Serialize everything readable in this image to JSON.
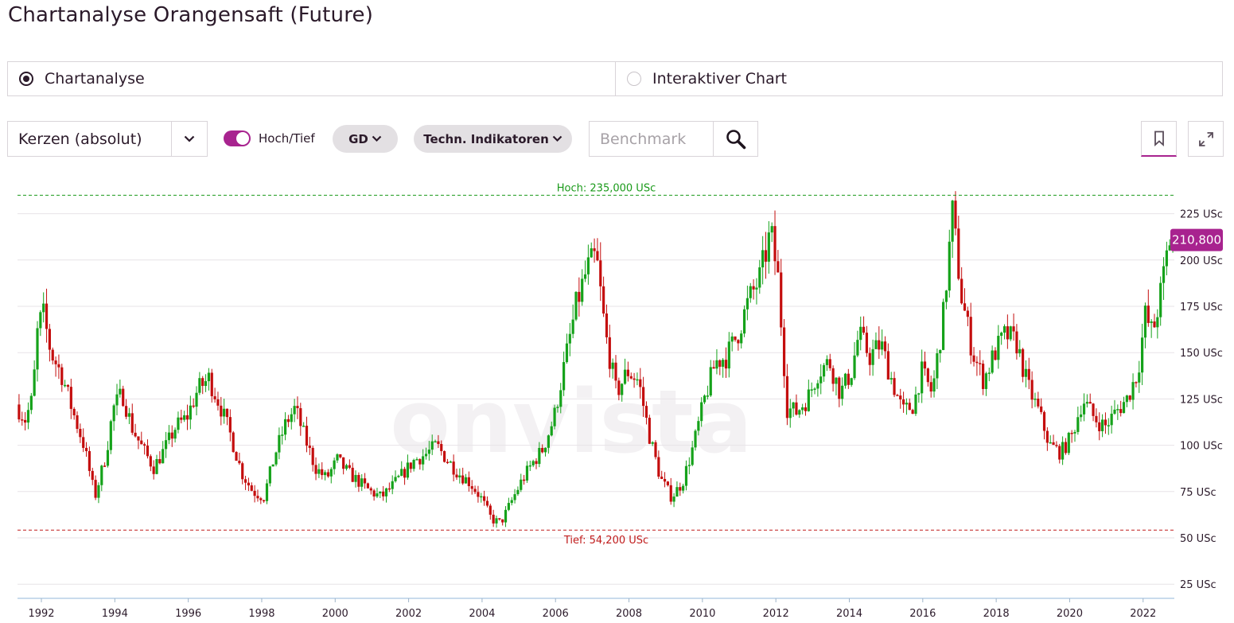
{
  "page": {
    "title": "Chartanalyse Orangensaft (Future)"
  },
  "mode": {
    "options": [
      {
        "label": "Chartanalyse",
        "selected": true
      },
      {
        "label": "Interaktiver Chart",
        "selected": false
      }
    ]
  },
  "toolbar": {
    "chart_type": "Kerzen (absolut)",
    "highlow_toggle_label": "Hoch/Tief",
    "highlow_on": true,
    "gd_label": "GD",
    "indicators_label": "Techn. Indikatoren",
    "benchmark_placeholder": "Benchmark",
    "accent_color": "#a8238f",
    "icons": [
      "chevron-down-icon",
      "search-icon",
      "bookmark-icon",
      "expand-icon"
    ]
  },
  "chart_data": {
    "type": "candlestick",
    "watermark": "onvista",
    "unit": "USc",
    "up_color": "#15a21a",
    "down_color": "#c40d0d",
    "x_range": [
      1991.35,
      2022.85
    ],
    "y_range": [
      20,
      240
    ],
    "y_ticks": [
      {
        "value": 25,
        "label": "25 USc"
      },
      {
        "value": 50,
        "label": "50 USc"
      },
      {
        "value": 75,
        "label": "75 USc"
      },
      {
        "value": 100,
        "label": "100 USc"
      },
      {
        "value": 125,
        "label": "125 USc"
      },
      {
        "value": 150,
        "label": "150 USc"
      },
      {
        "value": 175,
        "label": "175 USc"
      },
      {
        "value": 200,
        "label": "200 USc"
      },
      {
        "value": 225,
        "label": "225 USc"
      }
    ],
    "x_ticks": [
      {
        "value": 1992,
        "label": "1992"
      },
      {
        "value": 1994,
        "label": "1994"
      },
      {
        "value": 1996,
        "label": "1996"
      },
      {
        "value": 1998,
        "label": "1998"
      },
      {
        "value": 2000,
        "label": "2000"
      },
      {
        "value": 2002,
        "label": "2002"
      },
      {
        "value": 2004,
        "label": "2004"
      },
      {
        "value": 2006,
        "label": "2006"
      },
      {
        "value": 2008,
        "label": "2008"
      },
      {
        "value": 2010,
        "label": "2010"
      },
      {
        "value": 2012,
        "label": "2012"
      },
      {
        "value": 2014,
        "label": "2014"
      },
      {
        "value": 2016,
        "label": "2016"
      },
      {
        "value": 2018,
        "label": "2018"
      },
      {
        "value": 2020,
        "label": "2020"
      },
      {
        "value": 2022,
        "label": "2022"
      }
    ],
    "high_line": {
      "value": 235.0,
      "label": "Hoch: 235,000 USc",
      "color": "#1a9a1a"
    },
    "low_line": {
      "value": 54.2,
      "label": "Tief: 54,200 USc",
      "color": "#c01b1b"
    },
    "last_price": {
      "value": 210.8,
      "label": "210,800"
    },
    "price_path": [
      [
        1991.35,
        122
      ],
      [
        1991.6,
        114
      ],
      [
        1991.8,
        125
      ],
      [
        1991.95,
        165
      ],
      [
        1992.1,
        170
      ],
      [
        1992.3,
        150
      ],
      [
        1992.6,
        138
      ],
      [
        1992.9,
        118
      ],
      [
        1993.2,
        100
      ],
      [
        1993.5,
        72
      ],
      [
        1993.8,
        95
      ],
      [
        1994.0,
        120
      ],
      [
        1994.25,
        128
      ],
      [
        1994.5,
        110
      ],
      [
        1994.8,
        98
      ],
      [
        1995.1,
        88
      ],
      [
        1995.4,
        98
      ],
      [
        1995.7,
        110
      ],
      [
        1996.0,
        115
      ],
      [
        1996.3,
        130
      ],
      [
        1996.6,
        136
      ],
      [
        1996.9,
        122
      ],
      [
        1997.2,
        105
      ],
      [
        1997.5,
        85
      ],
      [
        1997.8,
        75
      ],
      [
        1998.1,
        72
      ],
      [
        1998.4,
        95
      ],
      [
        1998.7,
        112
      ],
      [
        1998.95,
        120
      ],
      [
        1999.2,
        105
      ],
      [
        1999.5,
        88
      ],
      [
        1999.8,
        82
      ],
      [
        2000.1,
        92
      ],
      [
        2000.4,
        85
      ],
      [
        2000.7,
        80
      ],
      [
        2001.0,
        75
      ],
      [
        2001.3,
        72
      ],
      [
        2001.6,
        78
      ],
      [
        2001.9,
        85
      ],
      [
        2002.2,
        92
      ],
      [
        2002.5,
        95
      ],
      [
        2002.8,
        100
      ],
      [
        2003.1,
        92
      ],
      [
        2003.4,
        85
      ],
      [
        2003.7,
        80
      ],
      [
        2004.0,
        72
      ],
      [
        2004.3,
        60
      ],
      [
        2004.55,
        58
      ],
      [
        2004.8,
        68
      ],
      [
        2005.1,
        80
      ],
      [
        2005.4,
        90
      ],
      [
        2005.7,
        98
      ],
      [
        2006.0,
        115
      ],
      [
        2006.3,
        145
      ],
      [
        2006.6,
        175
      ],
      [
        2006.9,
        195
      ],
      [
        2007.15,
        202
      ],
      [
        2007.4,
        160
      ],
      [
        2007.7,
        128
      ],
      [
        2008.0,
        140
      ],
      [
        2008.3,
        135
      ],
      [
        2008.6,
        105
      ],
      [
        2008.9,
        82
      ],
      [
        2009.2,
        72
      ],
      [
        2009.5,
        80
      ],
      [
        2009.8,
        100
      ],
      [
        2010.1,
        125
      ],
      [
        2010.4,
        145
      ],
      [
        2010.7,
        148
      ],
      [
        2011.0,
        160
      ],
      [
        2011.3,
        178
      ],
      [
        2011.6,
        190
      ],
      [
        2011.9,
        215
      ],
      [
        2012.1,
        190
      ],
      [
        2012.35,
        120
      ],
      [
        2012.6,
        118
      ],
      [
        2012.9,
        125
      ],
      [
        2013.2,
        140
      ],
      [
        2013.5,
        145
      ],
      [
        2013.8,
        128
      ],
      [
        2014.1,
        140
      ],
      [
        2014.3,
        160
      ],
      [
        2014.6,
        148
      ],
      [
        2014.9,
        155
      ],
      [
        2015.2,
        135
      ],
      [
        2015.5,
        118
      ],
      [
        2015.8,
        122
      ],
      [
        2016.0,
        140
      ],
      [
        2016.3,
        128
      ],
      [
        2016.6,
        170
      ],
      [
        2016.85,
        225
      ],
      [
        2017.1,
        180
      ],
      [
        2017.4,
        150
      ],
      [
        2017.7,
        135
      ],
      [
        2018.0,
        150
      ],
      [
        2018.3,
        160
      ],
      [
        2018.6,
        155
      ],
      [
        2018.9,
        132
      ],
      [
        2019.2,
        118
      ],
      [
        2019.5,
        100
      ],
      [
        2019.8,
        96
      ],
      [
        2020.1,
        105
      ],
      [
        2020.4,
        125
      ],
      [
        2020.7,
        115
      ],
      [
        2021.0,
        110
      ],
      [
        2021.3,
        118
      ],
      [
        2021.6,
        125
      ],
      [
        2021.9,
        140
      ],
      [
        2022.1,
        170
      ],
      [
        2022.3,
        160
      ],
      [
        2022.55,
        185
      ],
      [
        2022.75,
        210.8
      ]
    ]
  }
}
